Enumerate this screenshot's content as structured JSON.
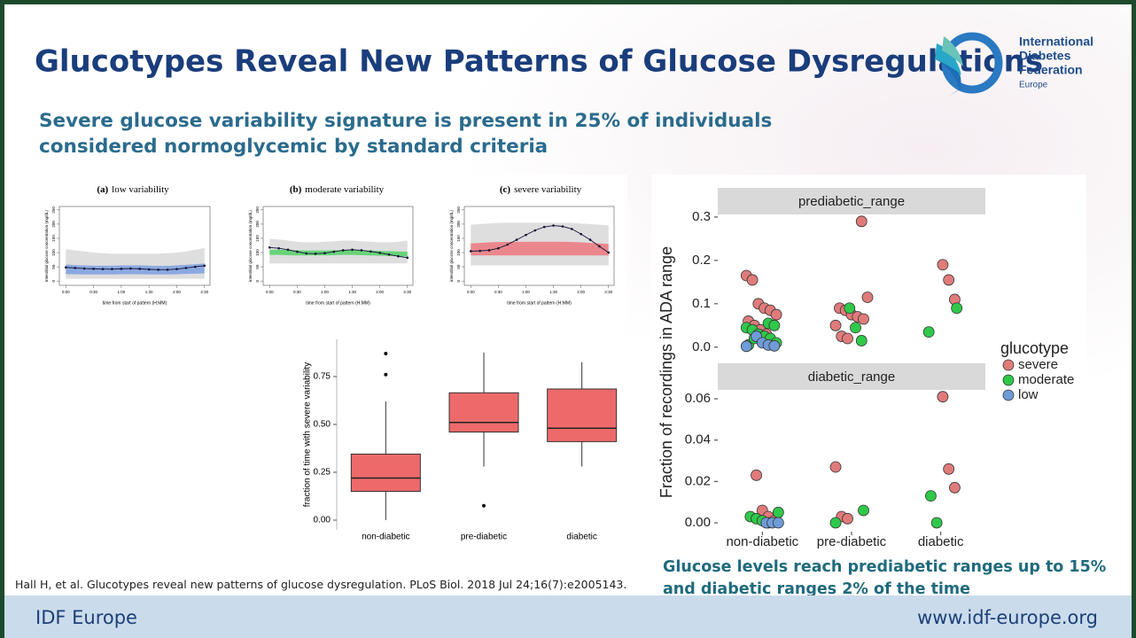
{
  "header": {
    "title": "Glucotypes Reveal New Patterns of Glucose Dysregulations",
    "subtitle": "Severe glucose variability signature is present in 25% of individuals considered normoglycemic by standard criteria"
  },
  "logo": {
    "lines": [
      "International",
      "Diabetes",
      "Federation"
    ],
    "region": "Europe"
  },
  "citation": "Hall H, et al. Glucotypes reveal new patterns of glucose dysregulation. PLoS Biol. 2018 Jul 24;16(7):e2005143.",
  "caption": "Glucose levels reach prediabetic ranges up to 15% and diabetic ranges 2% of the time",
  "footer": {
    "left": "IDF Europe",
    "right": "www.idf-europe.org"
  },
  "chart_data": [
    {
      "type": "line",
      "panel_label": "(a)",
      "title": "low variability",
      "xlabel": "time from start of pattern (H:MM)",
      "ylabel": "interstitial glucose concentration (mg/dL)",
      "x": [
        0,
        10,
        20,
        30,
        40,
        50,
        60,
        70,
        80,
        90,
        100,
        110,
        120,
        130,
        140,
        150
      ],
      "values": [
        48,
        46,
        44,
        43,
        42,
        42,
        43,
        44,
        43,
        41,
        40,
        40,
        42,
        46,
        50,
        54
      ],
      "color": "#111133",
      "band": {
        "color": "#6f97e0",
        "lower": [
          24,
          24,
          23,
          23,
          23,
          23,
          24,
          24,
          24,
          23,
          23,
          23,
          24,
          25,
          26,
          27
        ],
        "upper": [
          58,
          56,
          55,
          54,
          54,
          54,
          55,
          55,
          55,
          54,
          53,
          53,
          55,
          57,
          59,
          62
        ]
      },
      "outer_band": {
        "color": "#dedede",
        "lower": [
          8,
          8,
          8,
          8,
          8,
          8,
          8,
          8,
          8,
          8,
          8,
          8,
          8,
          8,
          8,
          8
        ],
        "upper": [
          112,
          108,
          104,
          100,
          98,
          96,
          96,
          96,
          96,
          96,
          96,
          98,
          100,
          104,
          110,
          116
        ]
      },
      "xlim": [
        -7,
        156
      ],
      "ylim": [
        -15,
        262
      ],
      "xticks": [
        {
          "value": 0,
          "label": "0:00"
        },
        {
          "value": 30,
          "label": "0:30"
        },
        {
          "value": 60,
          "label": "1:00"
        },
        {
          "value": 90,
          "label": "1:30"
        },
        {
          "value": 120,
          "label": "2:00"
        },
        {
          "value": 150,
          "label": "2:30"
        }
      ],
      "yticks": [
        0,
        50,
        100,
        150,
        200,
        250
      ]
    },
    {
      "type": "line",
      "panel_label": "(b)",
      "title": "moderate variability",
      "xlabel": "time from start of pattern (H:MM)",
      "ylabel": "interstitial glucose concentration (mg/dL)",
      "x": [
        0,
        10,
        20,
        30,
        40,
        50,
        60,
        70,
        80,
        90,
        100,
        110,
        120,
        130,
        140,
        150
      ],
      "values": [
        118,
        115,
        110,
        103,
        97,
        96,
        98,
        103,
        108,
        110,
        108,
        104,
        99,
        93,
        87,
        82
      ],
      "color": "#111133",
      "band": {
        "color": "#3fcf55",
        "lower": [
          92,
          92,
          91,
          90,
          90,
          90,
          90,
          91,
          92,
          92,
          91,
          90,
          89,
          88,
          87,
          86
        ],
        "upper": [
          110,
          110,
          109,
          108,
          107,
          107,
          107,
          108,
          109,
          109,
          108,
          107,
          106,
          105,
          104,
          103
        ]
      },
      "outer_band": {
        "color": "#dedede",
        "lower": [
          62,
          62,
          62,
          62,
          62,
          62,
          62,
          62,
          62,
          62,
          62,
          62,
          62,
          62,
          62,
          62
        ],
        "upper": [
          148,
          146,
          142,
          138,
          136,
          136,
          138,
          140,
          142,
          142,
          140,
          138,
          136,
          136,
          138,
          142
        ]
      },
      "xlim": [
        -7,
        156
      ],
      "ylim": [
        -15,
        262
      ],
      "xticks": [
        {
          "value": 0,
          "label": "0:00"
        },
        {
          "value": 30,
          "label": "0:30"
        },
        {
          "value": 60,
          "label": "1:00"
        },
        {
          "value": 90,
          "label": "1:30"
        },
        {
          "value": 120,
          "label": "2:00"
        },
        {
          "value": 150,
          "label": "2:30"
        }
      ],
      "yticks": [
        0,
        50,
        100,
        150,
        200,
        250
      ]
    },
    {
      "type": "line",
      "panel_label": "(c)",
      "title": "severe variability",
      "xlabel": "time from start of pattern (H:MM)",
      "ylabel": "interstitial glucose concentration (mg/dL)",
      "x": [
        0,
        10,
        20,
        30,
        40,
        50,
        60,
        70,
        80,
        90,
        100,
        110,
        120,
        130,
        140,
        150
      ],
      "values": [
        105,
        106,
        108,
        115,
        128,
        145,
        162,
        178,
        190,
        195,
        192,
        183,
        165,
        145,
        122,
        100
      ],
      "color": "#111133",
      "band": {
        "color": "#ee6a72",
        "lower": [
          90,
          90,
          90,
          90,
          90,
          90,
          90,
          90,
          90,
          90,
          90,
          90,
          90,
          90,
          90,
          90
        ],
        "upper": [
          132,
          134,
          136,
          137,
          138,
          138,
          138,
          138,
          138,
          138,
          138,
          137,
          136,
          134,
          132,
          130
        ]
      },
      "outer_band": {
        "color": "#dedede",
        "lower": [
          55,
          55,
          55,
          55,
          55,
          55,
          55,
          55,
          55,
          55,
          55,
          55,
          55,
          55,
          55,
          55
        ],
        "upper": [
          198,
          200,
          202,
          204,
          205,
          205,
          205,
          205,
          205,
          205,
          205,
          204,
          202,
          200,
          198,
          196
        ]
      },
      "xlim": [
        -7,
        156
      ],
      "ylim": [
        -15,
        262
      ],
      "xticks": [
        {
          "value": 0,
          "label": "0:00"
        },
        {
          "value": 30,
          "label": "0:30"
        },
        {
          "value": 60,
          "label": "1:00"
        },
        {
          "value": 90,
          "label": "1:30"
        },
        {
          "value": 120,
          "label": "2:00"
        },
        {
          "value": 150,
          "label": "2:30"
        }
      ],
      "yticks": [
        0,
        50,
        100,
        150,
        200,
        250
      ]
    },
    {
      "type": "box",
      "ylabel": "fraction of time with severe variability",
      "categories": [
        "non-diabetic",
        "pre-diabetic",
        "diabetic"
      ],
      "color": "#ee6a6a",
      "boxes": [
        {
          "whisker_low": 0.0,
          "q1": 0.15,
          "median": 0.22,
          "q3": 0.345,
          "whisker_high": 0.62,
          "outliers": [
            0.76,
            0.87
          ]
        },
        {
          "whisker_low": 0.28,
          "q1": 0.46,
          "median": 0.51,
          "q3": 0.665,
          "whisker_high": 0.875,
          "outliers": [
            0.075
          ]
        },
        {
          "whisker_low": 0.28,
          "q1": 0.41,
          "median": 0.48,
          "q3": 0.685,
          "whisker_high": 0.825,
          "outliers": []
        }
      ],
      "ylim": [
        -0.051,
        0.944
      ],
      "yticks": [
        {
          "value": 0,
          "label": "0.00"
        },
        {
          "value": 0.25,
          "label": "0.25"
        },
        {
          "value": 0.5,
          "label": "0.50"
        },
        {
          "value": 0.75,
          "label": "0.75"
        }
      ]
    },
    {
      "type": "strip",
      "ylabel": "Fraction of recordings in ADA range",
      "categories": [
        "non-diabetic",
        "pre-diabetic",
        "diabetic"
      ],
      "legend_title": "glucotype",
      "legend": "right",
      "panels": [
        {
          "title": "prediabetic_range",
          "ylim": [
            -0.027,
            0.306
          ],
          "yticks": [
            {
              "value": 0,
              "label": "0.0"
            },
            0.1,
            0.2,
            0.3
          ]
        },
        {
          "title": "diabetic_range",
          "ylim": [
            -0.0043,
            0.0643
          ],
          "yticks": [
            {
              "value": 0,
              "label": "0.00"
            },
            0.02,
            0.04,
            0.06
          ]
        }
      ],
      "series": [
        {
          "name": "severe",
          "color": "#e07b7b",
          "panels": [
            {
              "x": [
                "non-diabetic",
                "non-diabetic",
                "non-diabetic",
                "non-diabetic",
                "non-diabetic",
                "non-diabetic",
                "non-diabetic",
                "non-diabetic",
                "non-diabetic",
                "non-diabetic",
                "pre-diabetic",
                "pre-diabetic",
                "pre-diabetic",
                "pre-diabetic",
                "pre-diabetic",
                "pre-diabetic",
                "pre-diabetic",
                "pre-diabetic",
                "pre-diabetic",
                "pre-diabetic",
                "diabetic",
                "diabetic",
                "diabetic"
              ],
              "values": [
                0.165,
                0.155,
                0.1,
                0.09,
                0.085,
                0.075,
                0.06,
                0.05,
                0.04,
                0.03,
                0.29,
                0.115,
                0.09,
                0.085,
                0.075,
                0.07,
                0.065,
                0.05,
                0.025,
                0.02,
                0.19,
                0.155,
                0.11
              ]
            },
            {
              "x": [
                "non-diabetic",
                "non-diabetic",
                "non-diabetic",
                "non-diabetic",
                "pre-diabetic",
                "pre-diabetic",
                "pre-diabetic",
                "diabetic",
                "diabetic",
                "diabetic"
              ],
              "values": [
                0.023,
                0.006,
                0.003,
                0.001,
                0.027,
                0.003,
                0.002,
                0.061,
                0.026,
                0.017
              ]
            }
          ]
        },
        {
          "name": "moderate",
          "color": "#2fc94a",
          "panels": [
            {
              "x": [
                "non-diabetic",
                "non-diabetic",
                "non-diabetic",
                "non-diabetic",
                "non-diabetic",
                "non-diabetic",
                "non-diabetic",
                "non-diabetic",
                "non-diabetic",
                "non-diabetic",
                "pre-diabetic",
                "pre-diabetic",
                "pre-diabetic",
                "diabetic",
                "diabetic"
              ],
              "values": [
                0.055,
                0.05,
                0.045,
                0.04,
                0.03,
                0.025,
                0.02,
                0.01,
                0.005,
                0.02,
                0.09,
                0.045,
                0.015,
                0.09,
                0.035
              ]
            },
            {
              "x": [
                "non-diabetic",
                "non-diabetic",
                "non-diabetic",
                "non-diabetic",
                "non-diabetic",
                "pre-diabetic",
                "pre-diabetic",
                "diabetic",
                "diabetic"
              ],
              "values": [
                0.005,
                0.003,
                0.002,
                0.001,
                0,
                0.006,
                0,
                0.013,
                0
              ]
            }
          ]
        },
        {
          "name": "low",
          "color": "#6f9bd8",
          "panels": [
            {
              "x": [
                "non-diabetic",
                "non-diabetic",
                "non-diabetic",
                "non-diabetic",
                "non-diabetic"
              ],
              "values": [
                0.025,
                0.01,
                0.005,
                0.003,
                0.002
              ]
            },
            {
              "x": [
                "non-diabetic",
                "non-diabetic",
                "non-diabetic"
              ],
              "values": [
                0,
                0,
                0
              ]
            }
          ]
        }
      ]
    }
  ]
}
